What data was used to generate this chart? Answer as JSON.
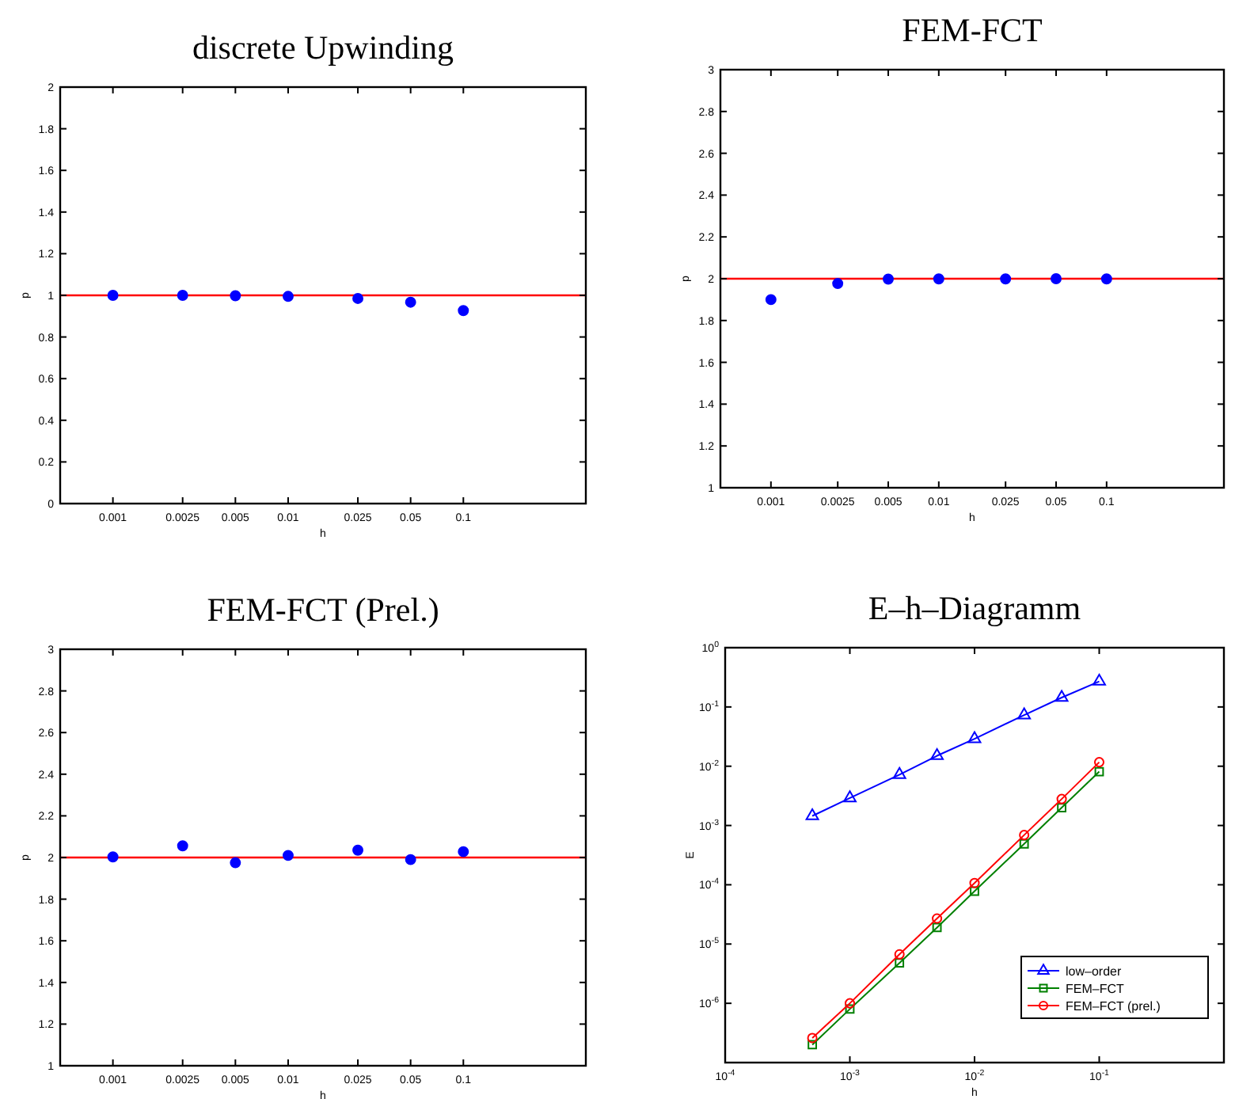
{
  "chart_data": [
    {
      "type": "scatter",
      "title": "discrete Upwinding",
      "xlabel": "h",
      "ylabel": "p",
      "log": "x",
      "marker": "circle",
      "x": [
        0.001,
        0.0025,
        0.005,
        0.01,
        0.025,
        0.05,
        0.1
      ],
      "xlim": [
        0.0005,
        0.5
      ],
      "xticks": [
        0.001,
        0.0025,
        0.005,
        0.01,
        0.025,
        0.05,
        0.1
      ],
      "ylim": [
        0,
        2
      ],
      "yticks": [
        0,
        0.2,
        0.4,
        0.6,
        0.8,
        1,
        1.2,
        1.4,
        1.6,
        1.8,
        2
      ],
      "series": [
        {
          "color": "#0000ff",
          "values": [
            1.0,
            1.0,
            0.998,
            0.995,
            0.985,
            0.967,
            0.927
          ]
        }
      ],
      "ref_lines": [
        {
          "axis": "y",
          "value": 1,
          "color": "#ff0000"
        }
      ]
    },
    {
      "type": "scatter",
      "title": "FEM-FCT",
      "xlabel": "h",
      "ylabel": "p",
      "log": "x",
      "marker": "circle",
      "x": [
        0.001,
        0.0025,
        0.005,
        0.01,
        0.025,
        0.05,
        0.1
      ],
      "xlim": [
        0.0005,
        0.5
      ],
      "xticks": [
        0.001,
        0.0025,
        0.005,
        0.01,
        0.025,
        0.05,
        0.1
      ],
      "ylim": [
        1,
        3
      ],
      "yticks": [
        1,
        1.2,
        1.4,
        1.6,
        1.8,
        2,
        2.2,
        2.4,
        2.6,
        2.8,
        3
      ],
      "series": [
        {
          "color": "#0000ff",
          "values": [
            1.9,
            1.977,
            1.998,
            1.999,
            1.999,
            2.0,
            1.999
          ]
        }
      ],
      "ref_lines": [
        {
          "axis": "y",
          "value": 2,
          "color": "#ff0000"
        }
      ]
    },
    {
      "type": "scatter",
      "title": "FEM-FCT (Prel.)",
      "xlabel": "h",
      "ylabel": "p",
      "log": "x",
      "marker": "circle",
      "x": [
        0.001,
        0.0025,
        0.005,
        0.01,
        0.025,
        0.05,
        0.1
      ],
      "xlim": [
        0.0005,
        0.5
      ],
      "xticks": [
        0.001,
        0.0025,
        0.005,
        0.01,
        0.025,
        0.05,
        0.1
      ],
      "ylim": [
        1,
        3
      ],
      "yticks": [
        1,
        1.2,
        1.4,
        1.6,
        1.8,
        2,
        2.2,
        2.4,
        2.6,
        2.8,
        3
      ],
      "series": [
        {
          "color": "#0000ff",
          "values": [
            2.003,
            2.056,
            1.975,
            2.01,
            2.035,
            1.99,
            2.028
          ]
        }
      ],
      "ref_lines": [
        {
          "axis": "y",
          "value": 2,
          "color": "#ff0000"
        }
      ]
    },
    {
      "type": "line",
      "title": "E–h–Diagramm",
      "xlabel": "h",
      "ylabel": "E",
      "log": "xy",
      "legend": "bottom right",
      "x": [
        0.0005,
        0.001,
        0.0025,
        0.005,
        0.01,
        0.025,
        0.05,
        0.1
      ],
      "xlim": [
        0.0001,
        1
      ],
      "xticks": [
        {
          "value": 0.0001,
          "label": "10$^{-4}$"
        },
        {
          "value": 0.001,
          "label": "10$^{-3}$"
        },
        {
          "value": 0.01,
          "label": "10$^{-2}$"
        },
        {
          "value": 0.1,
          "label": "10$^{-1}$"
        }
      ],
      "ylim": [
        1e-07,
        1
      ],
      "yticks": [
        {
          "value": 1e-06,
          "label": "10$^{-6}$"
        },
        {
          "value": 1e-05,
          "label": "10$^{-5}$"
        },
        {
          "value": 0.0001,
          "label": "10$^{-4}$"
        },
        {
          "value": 0.001,
          "label": "10$^{-3}$"
        },
        {
          "value": 0.01,
          "label": "10$^{-2}$"
        },
        {
          "value": 0.1,
          "label": "10$^{-1}$"
        },
        {
          "value": 1,
          "label": "10$^{0}$"
        }
      ],
      "series": [
        {
          "name": "low–order",
          "color": "#0000ff",
          "marker": "triangle",
          "values": [
            0.00145,
            0.0029,
            0.0072,
            0.015,
            0.029,
            0.073,
            0.144,
            0.27
          ]
        },
        {
          "name": "FEM–FCT",
          "color": "#008000",
          "marker": "square",
          "values": [
            2e-07,
            8e-07,
            4.8e-06,
            1.9e-05,
            7.8e-05,
            0.00049,
            0.002,
            0.0081
          ]
        },
        {
          "name": "FEM–FCT (prel.)",
          "color": "#ff0000",
          "marker": "circle",
          "values": [
            2.6e-07,
            1e-06,
            6.7e-06,
            2.7e-05,
            0.000107,
            0.00069,
            0.0028,
            0.0117
          ]
        }
      ]
    }
  ]
}
